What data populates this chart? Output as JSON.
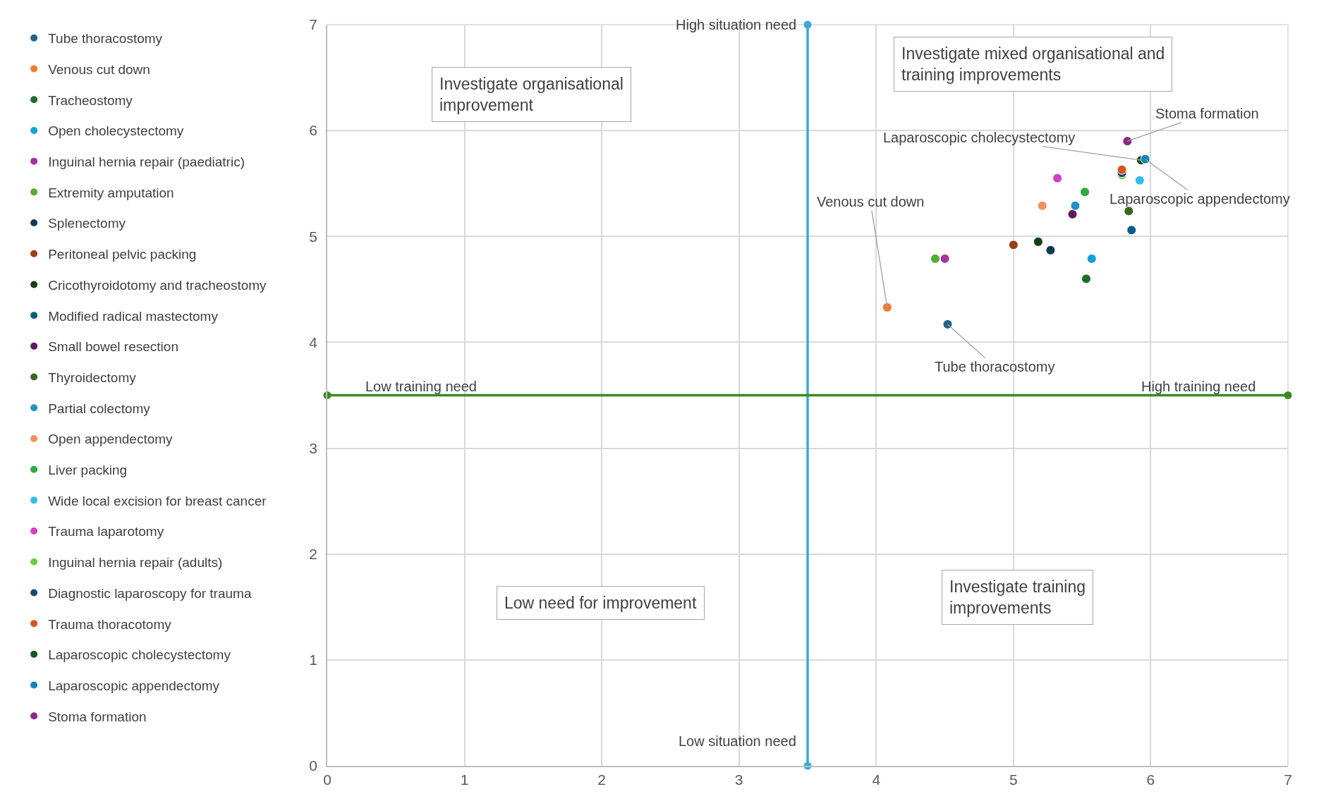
{
  "chart_data": {
    "type": "scatter",
    "xlim": [
      0,
      7
    ],
    "ylim": [
      0,
      7
    ],
    "xticks": [
      0,
      1,
      2,
      3,
      4,
      5,
      6,
      7
    ],
    "yticks": [
      0,
      1,
      2,
      3,
      4,
      5,
      6,
      7
    ],
    "grid": true,
    "legend": "left",
    "marker": "circle",
    "series": [
      {
        "name": "Tube thoracostomy",
        "color": "#1f6487",
        "x": [
          4.52
        ],
        "values": [
          4.17
        ]
      },
      {
        "name": "Venous cut down",
        "color": "#ed7d31",
        "x": [
          4.08
        ],
        "values": [
          4.33
        ]
      },
      {
        "name": "Tracheostomy",
        "color": "#1e6e2a",
        "x": [
          5.53
        ],
        "values": [
          4.6
        ]
      },
      {
        "name": "Open cholecystectomy",
        "color": "#13a0d8",
        "x": [
          5.57
        ],
        "values": [
          4.79
        ]
      },
      {
        "name": "Inguinal hernia repair (paediatric)",
        "color": "#a8329e",
        "x": [
          4.5
        ],
        "values": [
          4.79
        ]
      },
      {
        "name": "Extremity amputation",
        "color": "#52ae32",
        "x": [
          4.43
        ],
        "values": [
          4.79
        ]
      },
      {
        "name": "Splenectomy",
        "color": "#0d3a54",
        "x": [
          5.27
        ],
        "values": [
          4.87
        ]
      },
      {
        "name": "Peritoneal pelvic packing",
        "color": "#9c3f12",
        "x": [
          5.0
        ],
        "values": [
          4.92
        ]
      },
      {
        "name": "Cricothyroidotomy and tracheostomy",
        "color": "#0f4019",
        "x": [
          5.18
        ],
        "values": [
          4.95
        ]
      },
      {
        "name": "Modified radical mastectomy",
        "color": "#0b5e82",
        "x": [
          5.86
        ],
        "values": [
          5.06
        ]
      },
      {
        "name": "Small bowel resection",
        "color": "#5f1a5a",
        "x": [
          5.43
        ],
        "values": [
          5.21
        ]
      },
      {
        "name": "Thyroidectomy",
        "color": "#356a1e",
        "x": [
          5.84
        ],
        "values": [
          5.24
        ]
      },
      {
        "name": "Partial colectomy",
        "color": "#2590c8",
        "x": [
          5.45
        ],
        "values": [
          5.29
        ]
      },
      {
        "name": "Open appendectomy",
        "color": "#f09260",
        "x": [
          5.21
        ],
        "values": [
          5.29
        ]
      },
      {
        "name": "Liver packing",
        "color": "#2eaa3e",
        "x": [
          5.52
        ],
        "values": [
          5.42
        ]
      },
      {
        "name": "Wide local excision for breast cancer",
        "color": "#33bdef",
        "x": [
          5.92
        ],
        "values": [
          5.53
        ]
      },
      {
        "name": "Trauma laparotomy",
        "color": "#d041c2",
        "x": [
          5.32
        ],
        "values": [
          5.55
        ]
      },
      {
        "name": "Inguinal hernia repair (adults)",
        "color": "#6ccc44",
        "x": [
          5.79
        ],
        "values": [
          5.58
        ]
      },
      {
        "name": "Diagnostic laparoscopy for trauma",
        "color": "#124d6c",
        "x": [
          5.79
        ],
        "values": [
          5.6
        ]
      },
      {
        "name": "Trauma thoracotomy",
        "color": "#d4561a",
        "x": [
          5.79
        ],
        "values": [
          5.63
        ]
      },
      {
        "name": "Laparoscopic cholecystectomy",
        "color": "#14561e",
        "x": [
          5.93
        ],
        "values": [
          5.72
        ]
      },
      {
        "name": "Laparoscopic appendectomy",
        "color": "#1484b4",
        "x": [
          5.96
        ],
        "values": [
          5.73
        ]
      },
      {
        "name": "Stoma formation",
        "color": "#8a2a82",
        "x": [
          5.83
        ],
        "values": [
          5.9
        ]
      },
      {
        "type": "line",
        "color": "#3aa9de",
        "x": [
          3.5,
          3.5
        ],
        "values": [
          0,
          7
        ]
      },
      {
        "type": "line",
        "color": "#3a8a22",
        "x": [
          0,
          7
        ],
        "values": [
          3.5,
          3.5
        ]
      }
    ],
    "annotations": [
      "Investigate organisational\nimprovement",
      "Investigate mixed organisational and\ntraining improvements",
      "Low need for improvement",
      "Investigate training\nimprovements",
      {
        "text": "High situation need",
        "x": 3.5,
        "y": 7
      },
      {
        "text": "Low situation need",
        "x": 3.5,
        "y": 0
      },
      {
        "text": "Low training need",
        "x": 0,
        "y": 3.5
      },
      {
        "text": "High training need",
        "x": 7,
        "y": 3.5
      },
      {
        "text": "Venous cut down",
        "x": 4.08,
        "y": 4.33
      },
      {
        "text": "Tube thoracostomy",
        "x": 4.52,
        "y": 4.17
      },
      {
        "text": "Stoma formation",
        "x": 5.83,
        "y": 5.9
      },
      {
        "text": "Laparoscopic cholecystectomy",
        "x": 5.93,
        "y": 5.72
      },
      {
        "text": "Laparoscopic appendectomy",
        "x": 5.96,
        "y": 5.73
      }
    ]
  }
}
